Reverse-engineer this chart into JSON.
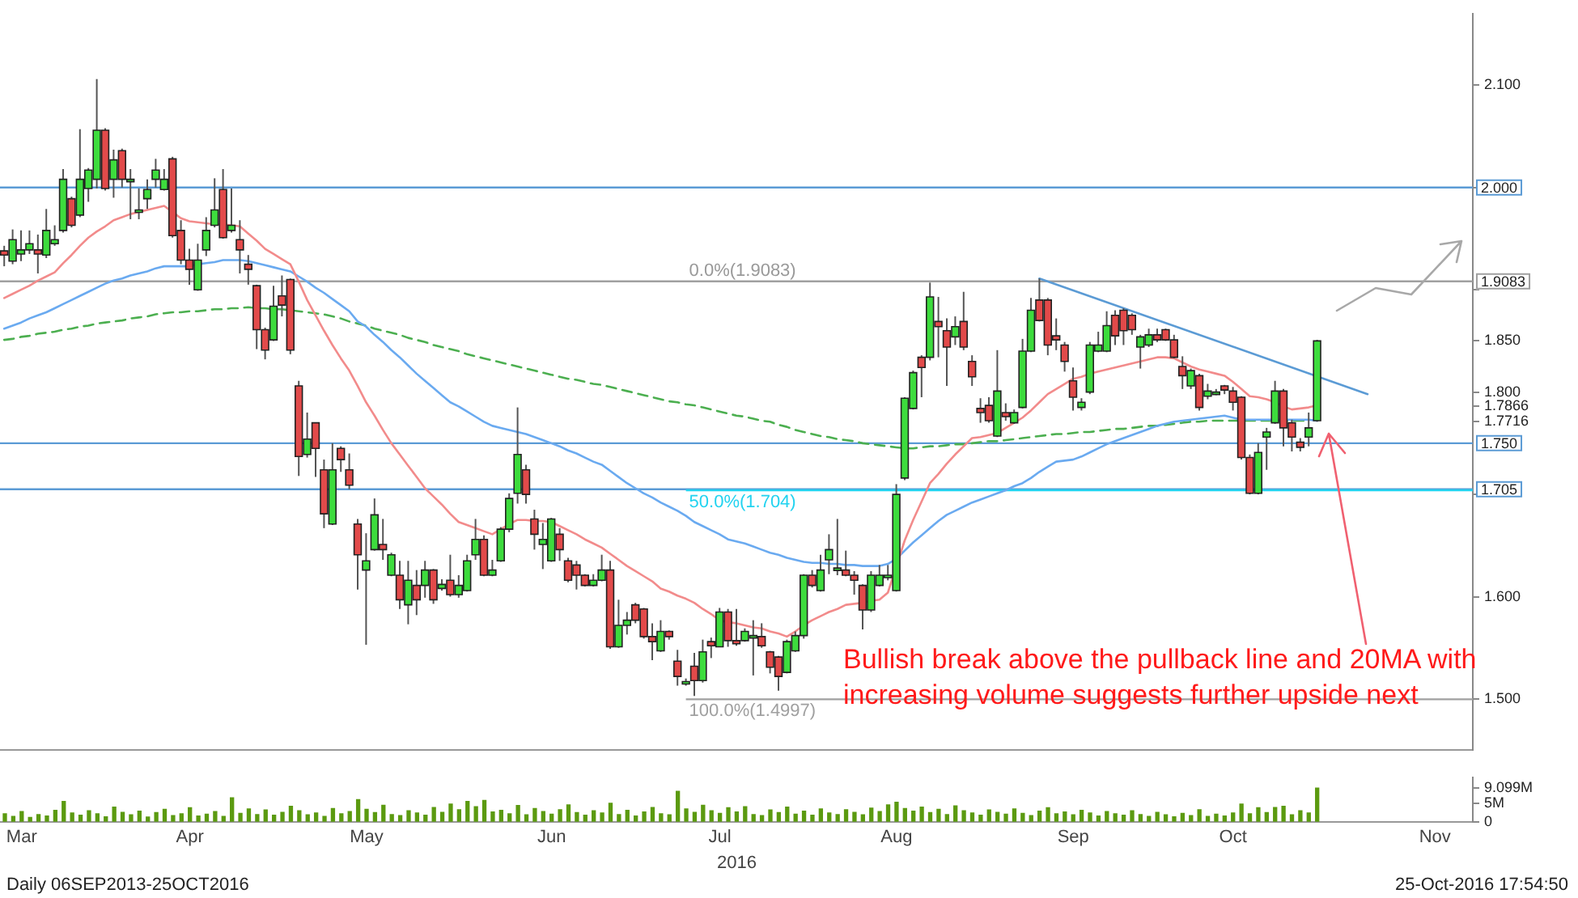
{
  "chart_data": [
    {
      "type": "candlestick",
      "categories": [
        null,
        null,
        null,
        null,
        null,
        null,
        null,
        null,
        null,
        null,
        null,
        null,
        null,
        null,
        null,
        null,
        null,
        null,
        null,
        null,
        null,
        null,
        null,
        null,
        null,
        null,
        null,
        null,
        null,
        null,
        null,
        null,
        null,
        null,
        null,
        null,
        null,
        null,
        null,
        null,
        null,
        null,
        null,
        null,
        null,
        null,
        null,
        null,
        null,
        null,
        null,
        null,
        null,
        null,
        null,
        null,
        null,
        null,
        null,
        null,
        null,
        null,
        null,
        null,
        null,
        null,
        null,
        null,
        null,
        null,
        null,
        null,
        null,
        null,
        null,
        null,
        null,
        null,
        null,
        null,
        null,
        null,
        null,
        null,
        null,
        null,
        null,
        null,
        null,
        null,
        null,
        null,
        null,
        null,
        null,
        null,
        null,
        null,
        null,
        null,
        null,
        null,
        null,
        null,
        null,
        null,
        null,
        null,
        null,
        null,
        null,
        null,
        null,
        null,
        null,
        null,
        null,
        null,
        null,
        null,
        null,
        null,
        null,
        null,
        null,
        null,
        null,
        null,
        null,
        null,
        null,
        null,
        null,
        null,
        null,
        null,
        null,
        null,
        null,
        null,
        null,
        null,
        null,
        null,
        null,
        null,
        null,
        null,
        null,
        null,
        null,
        null,
        null,
        null,
        null,
        null,
        null,
        null,
        null,
        null,
        null,
        null,
        null,
        null,
        null,
        null,
        null,
        null,
        null,
        null,
        null,
        null,
        null,
        null,
        null
      ],
      "ohlc": [
        [
          1.938,
          1.943,
          1.923,
          1.934
        ],
        [
          1.928,
          1.959,
          1.925,
          1.949
        ],
        [
          1.935,
          1.958,
          1.928,
          1.939
        ],
        [
          1.939,
          1.958,
          1.935,
          1.945
        ],
        [
          1.939,
          1.954,
          1.916,
          1.935
        ],
        [
          1.934,
          1.979,
          1.931,
          1.958
        ],
        [
          1.945,
          1.963,
          1.943,
          1.949
        ],
        [
          1.958,
          2.018,
          1.956,
          2.008
        ],
        [
          1.989,
          1.991,
          1.961,
          1.963
        ],
        [
          1.973,
          2.057,
          1.971,
          2.008
        ],
        [
          1.999,
          2.019,
          1.986,
          2.017
        ],
        [
          2.008,
          2.106,
          1.999,
          2.056
        ],
        [
          2.056,
          2.058,
          1.997,
          1.999
        ],
        [
          2.008,
          2.037,
          1.99,
          2.027
        ],
        [
          2.036,
          2.038,
          2.0,
          2.008
        ],
        [
          2.006,
          2.018,
          1.969,
          2.008
        ],
        [
          1.976,
          1.999,
          1.969,
          1.978
        ],
        [
          1.989,
          2.008,
          1.979,
          1.998
        ],
        [
          2.008,
          2.028,
          2.0,
          2.017
        ],
        [
          1.998,
          2.018,
          1.997,
          2.008
        ],
        [
          2.028,
          2.03,
          1.951,
          1.953
        ],
        [
          1.958,
          1.968,
          1.925,
          1.929
        ],
        [
          1.929,
          1.94,
          1.905,
          1.92
        ],
        [
          1.9,
          1.945,
          1.899,
          1.929
        ],
        [
          1.939,
          1.971,
          1.933,
          1.958
        ],
        [
          1.963,
          2.009,
          1.961,
          1.978
        ],
        [
          1.998,
          2.018,
          1.95,
          1.951
        ],
        [
          1.958,
          1.999,
          1.956,
          1.963
        ],
        [
          1.949,
          1.968,
          1.916,
          1.939
        ],
        [
          1.925,
          1.934,
          1.905,
          1.92
        ],
        [
          1.904,
          1.905,
          1.842,
          1.861
        ],
        [
          1.861,
          1.863,
          1.832,
          1.841
        ],
        [
          1.851,
          1.904,
          1.85,
          1.884
        ],
        [
          1.894,
          1.914,
          1.874,
          1.885
        ],
        [
          1.91,
          1.911,
          1.837,
          1.841
        ],
        [
          1.806,
          1.811,
          1.718,
          1.737
        ],
        [
          1.739,
          1.78,
          1.736,
          1.754
        ],
        [
          1.77,
          1.77,
          1.717,
          1.745
        ],
        [
          1.724,
          1.734,
          1.667,
          1.681
        ],
        [
          1.671,
          1.75,
          1.67,
          1.724
        ],
        [
          1.745,
          1.747,
          1.722,
          1.734
        ],
        [
          1.724,
          1.74,
          1.705,
          1.709
        ],
        [
          1.671,
          1.676,
          1.607,
          1.641
        ],
        [
          1.626,
          1.662,
          1.553,
          1.635
        ],
        [
          1.646,
          1.696,
          1.645,
          1.68
        ],
        [
          1.651,
          1.676,
          1.636,
          1.646
        ],
        [
          1.621,
          1.643,
          1.62,
          1.641
        ],
        [
          1.621,
          1.635,
          1.588,
          1.597
        ],
        [
          1.592,
          1.635,
          1.573,
          1.616
        ],
        [
          1.611,
          1.626,
          1.582,
          1.597
        ],
        [
          1.611,
          1.635,
          1.599,
          1.626
        ],
        [
          1.626,
          1.627,
          1.593,
          1.597
        ],
        [
          1.608,
          1.617,
          1.606,
          1.612
        ],
        [
          1.616,
          1.641,
          1.6,
          1.602
        ],
        [
          1.602,
          1.621,
          1.599,
          1.611
        ],
        [
          1.606,
          1.641,
          1.605,
          1.635
        ],
        [
          1.641,
          1.676,
          1.636,
          1.656
        ],
        [
          1.656,
          1.66,
          1.62,
          1.621
        ],
        [
          1.621,
          1.636,
          1.62,
          1.626
        ],
        [
          1.635,
          1.668,
          1.634,
          1.666
        ],
        [
          1.666,
          1.701,
          1.663,
          1.696
        ],
        [
          1.701,
          1.785,
          1.691,
          1.739
        ],
        [
          1.724,
          1.729,
          1.691,
          1.7
        ],
        [
          1.676,
          1.685,
          1.646,
          1.661
        ],
        [
          1.651,
          1.672,
          1.627,
          1.656
        ],
        [
          1.635,
          1.677,
          1.634,
          1.676
        ],
        [
          1.661,
          1.667,
          1.635,
          1.646
        ],
        [
          1.635,
          1.638,
          1.614,
          1.616
        ],
        [
          1.631,
          1.635,
          1.607,
          1.621
        ],
        [
          1.621,
          1.622,
          1.61,
          1.611
        ],
        [
          1.611,
          1.622,
          1.61,
          1.616
        ],
        [
          1.616,
          1.641,
          1.615,
          1.626
        ],
        [
          1.626,
          1.635,
          1.549,
          1.551
        ],
        [
          1.551,
          1.597,
          1.55,
          1.572
        ],
        [
          1.572,
          1.585,
          1.563,
          1.577
        ],
        [
          1.592,
          1.594,
          1.574,
          1.577
        ],
        [
          1.588,
          1.589,
          1.559,
          1.561
        ],
        [
          1.561,
          1.574,
          1.538,
          1.556
        ],
        [
          1.547,
          1.577,
          1.546,
          1.566
        ],
        [
          1.566,
          1.567,
          1.558,
          1.561
        ],
        [
          1.537,
          1.548,
          1.513,
          1.522
        ],
        [
          1.516,
          1.52,
          1.513,
          1.517
        ],
        [
          1.532,
          1.545,
          1.503,
          1.518
        ],
        [
          1.518,
          1.558,
          1.516,
          1.546
        ],
        [
          1.556,
          1.56,
          1.54,
          1.552
        ],
        [
          1.551,
          1.589,
          1.551,
          1.585
        ],
        [
          1.585,
          1.588,
          1.551,
          1.557
        ],
        [
          1.557,
          1.588,
          1.552,
          1.554
        ],
        [
          1.557,
          1.569,
          1.556,
          1.566
        ],
        [
          1.561,
          1.577,
          1.523,
          1.562
        ],
        [
          1.561,
          1.574,
          1.55,
          1.552
        ],
        [
          1.546,
          1.547,
          1.525,
          1.531
        ],
        [
          1.541,
          1.542,
          1.508,
          1.522
        ],
        [
          1.526,
          1.558,
          1.525,
          1.556
        ],
        [
          1.547,
          1.566,
          1.546,
          1.562
        ],
        [
          1.562,
          1.622,
          1.559,
          1.621
        ],
        [
          1.621,
          1.626,
          1.609,
          1.611
        ],
        [
          1.606,
          1.641,
          1.605,
          1.626
        ],
        [
          1.636,
          1.661,
          1.622,
          1.646
        ],
        [
          1.626,
          1.676,
          1.621,
          1.628
        ],
        [
          1.626,
          1.645,
          1.62,
          1.621
        ],
        [
          1.621,
          1.625,
          1.602,
          1.616
        ],
        [
          1.611,
          1.612,
          1.568,
          1.587
        ],
        [
          1.587,
          1.625,
          1.585,
          1.621
        ],
        [
          1.611,
          1.631,
          1.61,
          1.621
        ],
        [
          1.619,
          1.631,
          1.616,
          1.621
        ],
        [
          1.606,
          1.71,
          1.605,
          1.7
        ],
        [
          1.716,
          1.795,
          1.714,
          1.794
        ],
        [
          1.784,
          1.821,
          1.783,
          1.819
        ],
        [
          1.834,
          1.836,
          1.795,
          1.824
        ],
        [
          1.834,
          1.907,
          1.831,
          1.893
        ],
        [
          1.869,
          1.893,
          1.834,
          1.864
        ],
        [
          1.86,
          1.872,
          1.806,
          1.844
        ],
        [
          1.854,
          1.874,
          1.846,
          1.864
        ],
        [
          1.869,
          1.898,
          1.841,
          1.844
        ],
        [
          1.83,
          1.836,
          1.806,
          1.815
        ],
        [
          1.784,
          1.794,
          1.77,
          1.78
        ],
        [
          1.787,
          1.795,
          1.77,
          1.772
        ],
        [
          1.757,
          1.841,
          1.756,
          1.801
        ],
        [
          1.78,
          1.789,
          1.772,
          1.776
        ],
        [
          1.77,
          1.783,
          1.769,
          1.78
        ],
        [
          1.785,
          1.852,
          1.784,
          1.84
        ],
        [
          1.84,
          1.892,
          1.839,
          1.88
        ],
        [
          1.89,
          1.911,
          1.869,
          1.87
        ],
        [
          1.89,
          1.892,
          1.836,
          1.846
        ],
        [
          1.855,
          1.872,
          1.841,
          1.851
        ],
        [
          1.846,
          1.849,
          1.82,
          1.83
        ],
        [
          1.811,
          1.824,
          1.782,
          1.795
        ],
        [
          1.785,
          1.794,
          1.782,
          1.79
        ],
        [
          1.8,
          1.849,
          1.798,
          1.846
        ],
        [
          1.84,
          1.859,
          1.839,
          1.846
        ],
        [
          1.84,
          1.879,
          1.839,
          1.865
        ],
        [
          1.875,
          1.88,
          1.846,
          1.855
        ],
        [
          1.88,
          1.882,
          1.846,
          1.86
        ],
        [
          1.875,
          1.877,
          1.856,
          1.861
        ],
        [
          1.844,
          1.856,
          1.823,
          1.854
        ],
        [
          1.846,
          1.862,
          1.844,
          1.856
        ],
        [
          1.856,
          1.862,
          1.849,
          1.851
        ],
        [
          1.861,
          1.862,
          1.85,
          1.851
        ],
        [
          1.851,
          1.856,
          1.833,
          1.834
        ],
        [
          1.825,
          1.835,
          1.803,
          1.816
        ],
        [
          1.806,
          1.823,
          1.803,
          1.821
        ],
        [
          1.816,
          1.818,
          1.782,
          1.785
        ],
        [
          1.796,
          1.808,
          1.793,
          1.801
        ],
        [
          1.799,
          1.803,
          1.797,
          1.8
        ],
        [
          1.806,
          1.807,
          1.798,
          1.802
        ],
        [
          1.801,
          1.805,
          1.782,
          1.79
        ],
        [
          1.795,
          1.796,
          1.734,
          1.736
        ],
        [
          1.736,
          1.739,
          1.7,
          1.701
        ],
        [
          1.701,
          1.75,
          1.7,
          1.741
        ],
        [
          1.756,
          1.765,
          1.724,
          1.761
        ],
        [
          1.77,
          1.811,
          1.769,
          1.801
        ],
        [
          1.801,
          1.803,
          1.747,
          1.765
        ],
        [
          1.77,
          1.773,
          1.742,
          1.756
        ],
        [
          1.751,
          1.755,
          1.742,
          1.746
        ],
        [
          1.756,
          1.78,
          1.747,
          1.765
        ],
        [
          1.772,
          1.851,
          1.771,
          1.85
        ],
        null,
        null,
        null,
        null,
        null,
        null,
        null,
        null,
        null,
        null,
        null,
        null,
        null,
        null,
        null,
        null,
        null,
        null
      ],
      "series": [
        {
          "type": "line",
          "color": "#f28b8b",
          "values": [
            1.892,
            1.896,
            1.9,
            1.904,
            1.909,
            1.913,
            1.917,
            1.926,
            1.934,
            1.943,
            1.951,
            1.957,
            1.962,
            1.968,
            1.971,
            1.974,
            1.976,
            1.978,
            1.98,
            1.982,
            1.976,
            1.97,
            1.967,
            1.966,
            1.965,
            1.964,
            1.964,
            1.963,
            1.962,
            1.955,
            1.948,
            1.94,
            1.935,
            1.93,
            1.925,
            1.908,
            1.89,
            1.875,
            1.86,
            1.846,
            1.833,
            1.821,
            1.806,
            1.79,
            1.777,
            1.763,
            1.75,
            1.739,
            1.728,
            1.717,
            1.706,
            1.698,
            1.69,
            1.681,
            1.673,
            1.67,
            1.667,
            1.664,
            1.661,
            1.666,
            1.671,
            1.675,
            1.675,
            1.674,
            1.674,
            1.673,
            1.669,
            1.665,
            1.661,
            1.656,
            1.652,
            1.648,
            1.642,
            1.636,
            1.63,
            1.625,
            1.62,
            1.615,
            1.608,
            1.605,
            1.601,
            1.598,
            1.594,
            1.588,
            1.583,
            1.577,
            1.575,
            1.574,
            1.572,
            1.57,
            1.569,
            1.566,
            1.564,
            1.561,
            1.566,
            1.572,
            1.577,
            1.581,
            1.585,
            1.588,
            1.592,
            1.593,
            1.594,
            1.596,
            1.597,
            1.604,
            null,
            1.655,
            1.675,
            1.693,
            1.711,
            1.72,
            1.73,
            1.739,
            1.747,
            1.755,
            1.756,
            1.758,
            1.76,
            1.765,
            1.77,
            1.775,
            1.782,
            1.79,
            1.798,
            1.803,
            1.808,
            1.813,
            1.815,
            1.818,
            1.82,
            1.822,
            1.824,
            1.826,
            1.828,
            1.83,
            1.832,
            1.834,
            1.834,
            1.833,
            1.829,
            1.825,
            1.822,
            1.82,
            1.818,
            1.816,
            1.81,
            1.803,
            1.796,
            1.795,
            1.793,
            1.79,
            1.786,
            1.783,
            1.784,
            1.785,
            1.787,
            null,
            null,
            null,
            null,
            null,
            null,
            null,
            null,
            null,
            null,
            null,
            null,
            null,
            null,
            null,
            null,
            null,
            null
          ]
        },
        {
          "type": "line",
          "color": "#6aaaf0",
          "values": [
            1.862,
            1.865,
            1.868,
            1.872,
            1.875,
            1.878,
            1.882,
            1.886,
            1.89,
            1.894,
            1.898,
            1.902,
            1.906,
            1.909,
            1.911,
            1.914,
            1.916,
            1.918,
            1.921,
            1.923,
            1.923,
            1.923,
            1.923,
            1.925,
            1.926,
            1.927,
            1.929,
            1.929,
            1.929,
            1.928,
            1.926,
            1.924,
            1.922,
            1.92,
            1.918,
            1.913,
            1.908,
            1.902,
            1.897,
            1.891,
            1.885,
            1.879,
            1.869,
            1.864,
            1.856,
            1.849,
            1.841,
            1.834,
            1.826,
            1.818,
            1.811,
            1.804,
            1.797,
            1.79,
            1.786,
            1.781,
            1.776,
            1.771,
            1.767,
            1.765,
            1.763,
            1.761,
            1.759,
            1.756,
            1.753,
            1.75,
            1.747,
            1.743,
            1.74,
            1.736,
            1.732,
            1.729,
            1.723,
            1.717,
            1.711,
            1.706,
            1.701,
            1.697,
            1.692,
            1.688,
            1.684,
            1.679,
            1.673,
            1.669,
            1.665,
            1.661,
            1.656,
            1.654,
            1.652,
            1.649,
            1.646,
            1.643,
            1.641,
            1.638,
            1.636,
            1.634,
            1.633,
            1.633,
            1.632,
            1.632,
            1.631,
            1.631,
            1.63,
            1.63,
            1.63,
            1.632,
            1.637,
            1.645,
            1.653,
            1.66,
            1.667,
            1.674,
            1.68,
            1.684,
            1.688,
            1.692,
            1.695,
            1.698,
            1.701,
            1.704,
            1.708,
            1.711,
            1.716,
            1.722,
            1.727,
            1.732,
            1.733,
            1.734,
            1.737,
            1.741,
            1.745,
            1.749,
            1.752,
            1.755,
            1.758,
            1.761,
            1.764,
            1.767,
            1.769,
            1.771,
            1.772,
            1.773,
            1.774,
            1.775,
            1.776,
            1.777,
            1.775,
            1.773,
            1.773,
            1.773,
            1.773,
            1.773,
            1.773,
            1.773,
            1.773,
            1.773,
            1.772,
            null,
            null,
            null,
            null,
            null,
            null,
            null,
            null,
            null,
            null,
            null,
            null,
            null,
            null,
            null,
            null,
            null,
            null
          ]
        },
        {
          "type": "line",
          "color": "#4caf50",
          "line_style": "dashed",
          "values": [
            1.851,
            1.852,
            1.854,
            1.855,
            1.857,
            1.858,
            1.859,
            1.861,
            1.862,
            1.864,
            1.865,
            1.867,
            1.868,
            1.869,
            1.87,
            1.872,
            1.873,
            1.874,
            1.876,
            1.877,
            1.878,
            1.878,
            1.879,
            1.879,
            1.88,
            1.881,
            1.881,
            1.882,
            1.882,
            1.883,
            1.882,
            1.882,
            1.881,
            1.881,
            1.88,
            1.879,
            1.878,
            1.877,
            1.876,
            1.874,
            1.872,
            1.869,
            1.867,
            1.865,
            1.862,
            1.86,
            1.858,
            1.856,
            1.853,
            1.851,
            1.849,
            1.846,
            1.844,
            1.842,
            1.84,
            1.837,
            1.835,
            1.833,
            1.831,
            1.829,
            1.827,
            1.825,
            1.823,
            1.821,
            1.819,
            1.817,
            1.815,
            1.813,
            1.812,
            1.81,
            1.808,
            1.807,
            1.805,
            1.803,
            1.801,
            1.799,
            1.797,
            1.795,
            1.793,
            1.791,
            1.79,
            1.788,
            1.787,
            1.785,
            1.783,
            1.781,
            1.779,
            1.777,
            1.776,
            1.774,
            1.772,
            1.771,
            1.768,
            1.766,
            1.763,
            1.761,
            1.759,
            1.757,
            1.756,
            1.754,
            1.753,
            1.752,
            1.75,
            1.749,
            1.748,
            1.747,
            1.746,
            1.745,
            1.745,
            1.746,
            1.747,
            1.747,
            1.748,
            1.749,
            1.749,
            1.75,
            1.751,
            1.752,
            1.752,
            1.753,
            1.754,
            1.755,
            1.756,
            1.757,
            1.758,
            1.759,
            1.759,
            1.76,
            1.761,
            1.761,
            1.762,
            1.763,
            1.764,
            1.764,
            1.765,
            1.766,
            1.767,
            1.767,
            1.768,
            1.769,
            1.77,
            1.771,
            1.771,
            1.772,
            1.772,
            1.772,
            1.772,
            1.772,
            1.772,
            1.772,
            1.772,
            1.772,
            1.772,
            1.772,
            1.772,
            1.772,
            null,
            null,
            null,
            null,
            null,
            null,
            null,
            null,
            null,
            null,
            null,
            null,
            null,
            null,
            null,
            null,
            null,
            null,
            null
          ]
        },
        {
          "type": "line",
          "color": "#5b9bd5",
          "values": [
            null,
            null,
            null,
            null,
            null,
            null,
            null,
            null,
            null,
            null,
            null,
            null,
            null,
            null,
            null,
            null,
            null,
            null,
            null,
            null,
            null,
            null,
            null,
            null,
            null,
            null,
            null,
            null,
            null,
            null,
            null,
            null,
            null,
            null,
            null,
            null,
            null,
            null,
            null,
            null,
            null,
            null,
            null,
            null,
            null,
            null,
            null,
            null,
            null,
            null,
            null,
            null,
            null,
            null,
            null,
            null,
            null,
            null,
            null,
            null,
            null,
            null,
            null,
            null,
            null,
            null,
            null,
            null,
            null,
            null,
            null,
            null,
            null,
            null,
            null,
            null,
            null,
            null,
            null,
            null,
            null,
            null,
            null,
            null,
            null,
            null,
            null,
            null,
            null,
            null,
            null,
            null,
            null,
            null,
            null,
            null,
            null,
            null,
            null,
            null,
            null,
            null,
            null,
            null,
            null,
            null,
            null,
            null,
            null,
            null,
            null,
            null,
            null,
            null,
            null,
            null,
            null,
            null,
            null,
            null,
            null,
            null,
            null,
            1.911,
            null,
            null,
            null,
            null,
            null,
            null,
            null,
            null,
            null,
            null,
            null,
            null,
            null,
            null,
            null,
            null,
            null,
            null,
            null,
            null,
            null,
            null,
            null,
            null,
            null,
            null,
            null,
            null,
            null,
            null,
            null,
            null,
            null,
            null,
            null,
            null,
            null,
            null,
            1.798,
            null,
            null,
            null,
            null,
            null,
            null,
            null,
            null,
            null,
            null,
            null,
            null
          ]
        }
      ],
      "ylim": [
        1.45,
        2.17
      ],
      "yticks": [
        {
          "value": 1.5,
          "label": "1.500"
        },
        {
          "value": 1.6,
          "label": "1.600"
        },
        {
          "value": 1.7,
          "label": null
        },
        {
          "value": 1.7716,
          "label": "1.7716"
        },
        {
          "value": 1.7866,
          "label": "1.7866"
        },
        {
          "value": 1.8,
          "label": "1.800"
        },
        {
          "value": 1.85,
          "label": "1.850"
        },
        {
          "value": 1.9,
          "label": null
        },
        {
          "value": 2.0,
          "label": null
        },
        {
          "value": 2.1,
          "label": "2.100"
        }
      ],
      "ref_lines": [
        {
          "axis": "y",
          "value": 2.0,
          "label": "2.000",
          "color": "#5b9bd5"
        },
        {
          "axis": "y",
          "value": 1.9083,
          "label": "1.9083",
          "color": "#a0a0a0"
        },
        {
          "axis": "y",
          "value": 1.75,
          "label": "1.750",
          "color": "#5b9bd5"
        },
        {
          "axis": "y",
          "value": 1.705,
          "label": "1.705",
          "color": "#5b9bd5"
        },
        {
          "axis": "y",
          "value": 1.704,
          "label": "50.0%(1.704)",
          "color": "#22d3f0"
        },
        {
          "axis": "y",
          "value": 1.4997,
          "label": "100.0%(1.4997)",
          "color": "#a0a0a0"
        }
      ],
      "annotations": [
        {
          "text": "0.0%(1.9083)",
          "y": 1.9083
        },
        "Bullish break above the pullback line and 20MA with increasing volume suggests further upside next"
      ],
      "tick_labels": "y",
      "legend": false
    },
    {
      "type": "bar",
      "categories": [
        null,
        null,
        "Mar",
        null,
        null,
        null,
        null,
        null,
        null,
        null,
        null,
        null,
        null,
        null,
        null,
        null,
        null,
        null,
        null,
        null,
        null,
        null,
        "Apr",
        null,
        null,
        null,
        null,
        null,
        null,
        null,
        null,
        null,
        null,
        null,
        null,
        null,
        null,
        null,
        null,
        null,
        null,
        null,
        null,
        "May",
        null,
        null,
        null,
        null,
        null,
        null,
        null,
        null,
        null,
        null,
        null,
        null,
        null,
        null,
        null,
        null,
        null,
        null,
        null,
        null,
        null,
        "Jun",
        null,
        null,
        null,
        null,
        null,
        null,
        null,
        null,
        null,
        null,
        null,
        null,
        null,
        null,
        null,
        null,
        null,
        null,
        null,
        "Jul",
        null,
        null,
        null,
        null,
        null,
        null,
        null,
        null,
        null,
        null,
        null,
        null,
        null,
        null,
        null,
        null,
        null,
        null,
        null,
        null,
        "Aug",
        null,
        null,
        null,
        null,
        null,
        null,
        null,
        null,
        null,
        null,
        null,
        null,
        null,
        null,
        null,
        null,
        null,
        null,
        null,
        null,
        "Sep",
        null,
        null,
        null,
        null,
        null,
        null,
        null,
        null,
        null,
        null,
        null,
        null,
        null,
        null,
        null,
        null,
        null,
        null,
        "Oct",
        null,
        null,
        null,
        null,
        null,
        null,
        null,
        null,
        null,
        null,
        null,
        null,
        null,
        null,
        null,
        null,
        null,
        null,
        null,
        null,
        null,
        null,
        null,
        "Nov",
        null,
        null,
        null,
        null
      ],
      "values": [
        2.2,
        1.5,
        2.8,
        1.2,
        2.0,
        1.6,
        3.1,
        5.5,
        2.4,
        1.8,
        3.0,
        2.2,
        1.4,
        4.0,
        2.6,
        1.9,
        2.9,
        1.3,
        2.5,
        3.4,
        1.7,
        2.2,
        3.8,
        1.6,
        2.1,
        2.8,
        1.5,
        6.5,
        2.3,
        3.5,
        2.0,
        3.2,
        1.8,
        2.6,
        4.2,
        3.0,
        1.9,
        2.4,
        1.5,
        3.6,
        2.2,
        2.8,
        6.0,
        3.4,
        2.5,
        4.5,
        2.0,
        1.7,
        3.0,
        2.4,
        1.8,
        3.9,
        2.6,
        4.8,
        3.3,
        5.5,
        4.1,
        5.8,
        2.7,
        3.1,
        2.2,
        4.4,
        1.9,
        3.6,
        2.8,
        2.1,
        3.3,
        4.6,
        2.5,
        1.8,
        3.0,
        2.4,
        5.0,
        2.0,
        3.1,
        1.6,
        2.7,
        3.9,
        2.2,
        1.9,
        8.2,
        3.5,
        2.6,
        4.5,
        3.0,
        2.3,
        3.8,
        2.7,
        4.1,
        2.0,
        1.7,
        3.2,
        2.5,
        4.0,
        2.1,
        2.9,
        1.8,
        3.5,
        2.4,
        2.0,
        3.3,
        2.6,
        1.9,
        3.7,
        2.8,
        4.6,
        5.3,
        3.6,
        2.9,
        4.0,
        2.5,
        3.4,
        2.0,
        4.3,
        3.0,
        2.4,
        1.8,
        3.2,
        2.6,
        2.1,
        3.5,
        2.3,
        1.7,
        2.9,
        3.8,
        2.2,
        2.7,
        1.9,
        3.1,
        2.4,
        1.6,
        2.8,
        2.2,
        1.8,
        3.0,
        2.0,
        1.5,
        2.6,
        1.9,
        1.4,
        2.3,
        1.7,
        3.3,
        1.5,
        2.1,
        1.6,
        2.4,
        4.8,
        2.2,
        3.8,
        2.5,
        3.9,
        4.2,
        1.9,
        3.0,
        2.4,
        9.099,
        null,
        null,
        null,
        null,
        null,
        null,
        null,
        null,
        null,
        null,
        null,
        null,
        null,
        null,
        null,
        null,
        null,
        null
      ],
      "color": "#5b9a10",
      "ylim": [
        0,
        12
      ],
      "yticks": [
        {
          "value": 0,
          "label": "0"
        },
        {
          "value": 5,
          "label": "5M"
        },
        {
          "value": 9.099,
          "label": "9.099M"
        }
      ],
      "xlabel": "2016",
      "annotations": [
        "Daily 06SEP2013-25OCT2016",
        "25-Oct-2016 17:54:50"
      ],
      "legend": false
    }
  ]
}
